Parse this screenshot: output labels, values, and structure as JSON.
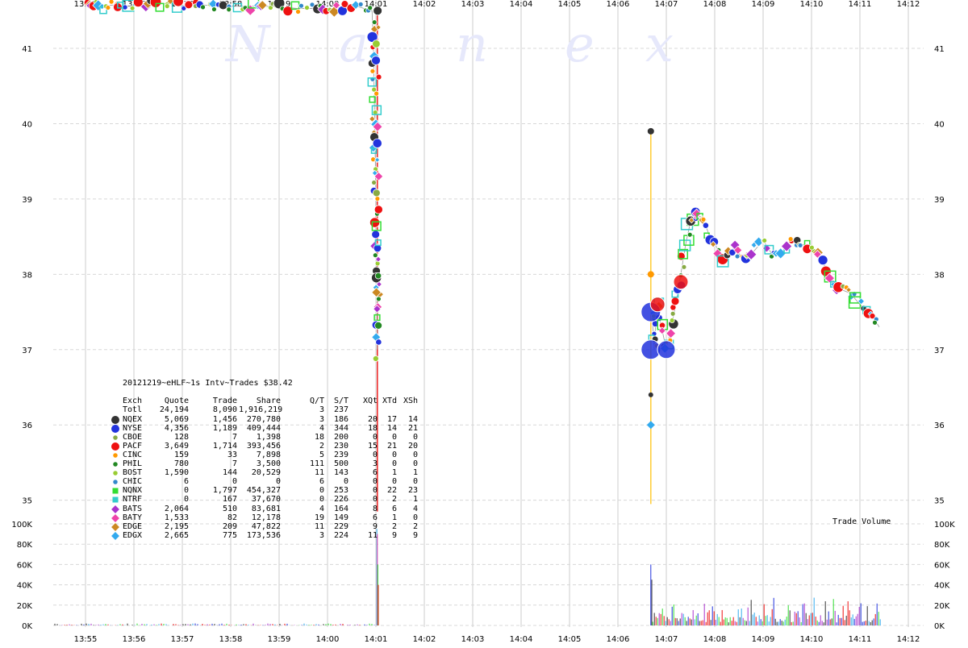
{
  "watermark": [
    "N",
    "a",
    "n",
    "e",
    "x"
  ],
  "chart_data": {
    "type": "scatter",
    "title": "20121219~eHLF~1s Intv~Trades $38.42",
    "x_ticks": [
      "13:55",
      "13:56",
      "13:57",
      "13:58",
      "13:59",
      "14:00",
      "14:01",
      "14:02",
      "14:03",
      "14:04",
      "14:05",
      "14:06",
      "14:07",
      "14:08",
      "14:09",
      "14:10",
      "14:11",
      "14:12"
    ],
    "y_ticks": [
      "35",
      "36",
      "37",
      "38",
      "39",
      "40",
      "41"
    ],
    "ylim": [
      34.9,
      41.6
    ],
    "volume_ticks": [
      "0K",
      "20K",
      "40K",
      "60K",
      "80K",
      "100K"
    ],
    "volume_label": "Trade Volume",
    "grid": true,
    "legend_headers": [
      "Exch",
      "Quote",
      "Trade",
      "Share",
      "Q/T",
      "S/T",
      "XQt",
      "XTd",
      "XSh"
    ],
    "legend_total": [
      "Totl",
      "24,194",
      "8,090",
      "1,916,219",
      "3",
      "237",
      "",
      "",
      ""
    ],
    "legend_rows": [
      {
        "sym": "circle",
        "color": "#333333",
        "cells": [
          "NQEX",
          "5,069",
          "1,456",
          "270,780",
          "3",
          "186",
          "20",
          "17",
          "14"
        ]
      },
      {
        "sym": "circle",
        "color": "#2233dd",
        "cells": [
          "NYSE",
          "4,356",
          "1,189",
          "409,444",
          "4",
          "344",
          "18",
          "14",
          "21"
        ]
      },
      {
        "sym": "small-circle",
        "color": "#88aa44",
        "cells": [
          "CBOE",
          "128",
          "7",
          "1,398",
          "18",
          "200",
          "0",
          "0",
          "0"
        ]
      },
      {
        "sym": "circle",
        "color": "#ee1111",
        "cells": [
          "PACF",
          "3,649",
          "1,714",
          "393,456",
          "2",
          "230",
          "15",
          "21",
          "20"
        ]
      },
      {
        "sym": "small-circle",
        "color": "#ff9900",
        "cells": [
          "CINC",
          "159",
          "33",
          "7,898",
          "5",
          "239",
          "0",
          "0",
          "0"
        ]
      },
      {
        "sym": "small-circle",
        "color": "#228822",
        "cells": [
          "PHIL",
          "780",
          "7",
          "3,500",
          "111",
          "500",
          "3",
          "0",
          "0"
        ]
      },
      {
        "sym": "small-circle",
        "color": "#99cc33",
        "cells": [
          "BOST",
          "1,590",
          "144",
          "20,529",
          "11",
          "143",
          "6",
          "1",
          "1"
        ]
      },
      {
        "sym": "small-circle",
        "color": "#3388cc",
        "cells": [
          "CHIC",
          "6",
          "0",
          "0",
          "6",
          "0",
          "0",
          "0",
          "0"
        ]
      },
      {
        "sym": "square",
        "color": "#33dd33",
        "cells": [
          "NQNX",
          "0",
          "1,797",
          "454,327",
          "0",
          "253",
          "0",
          "22",
          "23"
        ]
      },
      {
        "sym": "square",
        "color": "#33cccc",
        "cells": [
          "NTRF",
          "0",
          "167",
          "37,670",
          "0",
          "226",
          "0",
          "2",
          "1"
        ]
      },
      {
        "sym": "diamond",
        "color": "#aa33cc",
        "cells": [
          "BATS",
          "2,064",
          "510",
          "83,681",
          "4",
          "164",
          "8",
          "6",
          "4"
        ]
      },
      {
        "sym": "diamond",
        "color": "#ee44aa",
        "cells": [
          "BATY",
          "1,533",
          "82",
          "12,178",
          "19",
          "149",
          "6",
          "1",
          "0"
        ]
      },
      {
        "sym": "diamond",
        "color": "#cc8822",
        "cells": [
          "EDGE",
          "2,195",
          "209",
          "47,822",
          "11",
          "229",
          "9",
          "2",
          "2"
        ]
      },
      {
        "sym": "diamond",
        "color": "#33aaee",
        "cells": [
          "EDGX",
          "2,665",
          "775",
          "173,536",
          "3",
          "224",
          "11",
          "9",
          "9"
        ]
      }
    ],
    "price_series": [
      {
        "t": 0.0,
        "p": 41.56
      },
      {
        "t": 0.2,
        "p": 41.57
      },
      {
        "t": 0.4,
        "p": 41.56
      },
      {
        "t": 0.6,
        "p": 41.58
      },
      {
        "t": 0.9,
        "p": 41.56
      },
      {
        "t": 1.2,
        "p": 41.6
      },
      {
        "t": 1.5,
        "p": 41.6
      },
      {
        "t": 1.8,
        "p": 41.59
      },
      {
        "t": 2.1,
        "p": 41.56
      },
      {
        "t": 2.4,
        "p": 41.58
      },
      {
        "t": 2.7,
        "p": 41.56
      },
      {
        "t": 3.0,
        "p": 41.56
      },
      {
        "t": 3.4,
        "p": 41.56
      },
      {
        "t": 3.7,
        "p": 41.56
      },
      {
        "t": 4.0,
        "p": 41.55
      },
      {
        "t": 4.4,
        "p": 41.53
      },
      {
        "t": 4.8,
        "p": 41.53
      },
      {
        "t": 5.0,
        "p": 41.52
      },
      {
        "t": 5.3,
        "p": 41.55
      },
      {
        "t": 5.6,
        "p": 41.56
      },
      {
        "t": 5.92,
        "p": 41.5
      },
      {
        "t": 5.95,
        "p": 41.0
      },
      {
        "t": 5.96,
        "p": 40.6
      },
      {
        "t": 5.97,
        "p": 40.2
      },
      {
        "t": 5.98,
        "p": 39.8
      },
      {
        "t": 5.99,
        "p": 39.4
      },
      {
        "t": 6.0,
        "p": 39.0
      },
      {
        "t": 6.0,
        "p": 38.6
      },
      {
        "t": 6.01,
        "p": 38.2
      },
      {
        "t": 6.02,
        "p": 37.9
      },
      {
        "t": 6.03,
        "p": 37.55
      },
      {
        "t": 6.03,
        "p": 37.0
      },
      {
        "t": 11.7,
        "p": 37.5
      },
      {
        "t": 11.75,
        "p": 37.0
      },
      {
        "t": 11.8,
        "p": 37.6
      },
      {
        "t": 11.9,
        "p": 37.3
      },
      {
        "t": 12.0,
        "p": 37.0
      },
      {
        "t": 12.1,
        "p": 37.3
      },
      {
        "t": 12.2,
        "p": 37.6
      },
      {
        "t": 12.3,
        "p": 38.0
      },
      {
        "t": 12.4,
        "p": 38.4
      },
      {
        "t": 12.5,
        "p": 38.7
      },
      {
        "t": 12.6,
        "p": 38.8
      },
      {
        "t": 12.75,
        "p": 38.75
      },
      {
        "t": 12.9,
        "p": 38.5
      },
      {
        "t": 13.0,
        "p": 38.4
      },
      {
        "t": 13.2,
        "p": 38.2
      },
      {
        "t": 13.4,
        "p": 38.35
      },
      {
        "t": 13.6,
        "p": 38.2
      },
      {
        "t": 13.8,
        "p": 38.3
      },
      {
        "t": 14.0,
        "p": 38.45
      },
      {
        "t": 14.2,
        "p": 38.25
      },
      {
        "t": 14.4,
        "p": 38.3
      },
      {
        "t": 14.6,
        "p": 38.45
      },
      {
        "t": 14.8,
        "p": 38.4
      },
      {
        "t": 15.0,
        "p": 38.35
      },
      {
        "t": 15.2,
        "p": 38.2
      },
      {
        "t": 15.4,
        "p": 37.95
      },
      {
        "t": 15.6,
        "p": 37.8
      },
      {
        "t": 15.8,
        "p": 37.75
      },
      {
        "t": 16.0,
        "p": 37.6
      },
      {
        "t": 16.2,
        "p": 37.5
      },
      {
        "t": 16.4,
        "p": 37.3
      }
    ],
    "spikes": [
      {
        "t": 6.03,
        "low": 34.85,
        "high": 41.5,
        "color": "#ee2222"
      },
      {
        "t": 11.68,
        "low": 34.95,
        "high": 39.9,
        "color": "#ffcc33"
      }
    ]
  }
}
